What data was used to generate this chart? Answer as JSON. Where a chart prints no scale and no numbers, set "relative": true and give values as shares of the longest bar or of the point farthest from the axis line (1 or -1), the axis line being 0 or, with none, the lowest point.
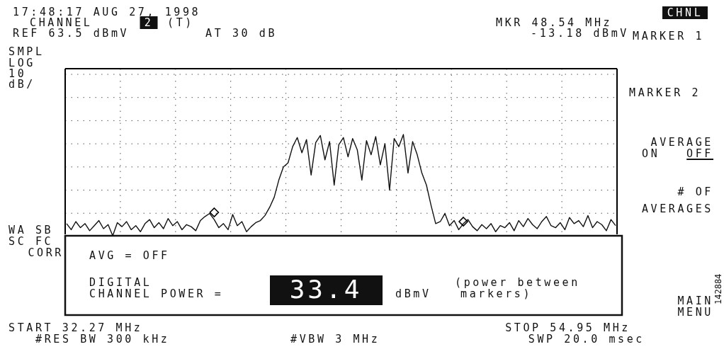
{
  "chart_data": {
    "type": "line",
    "relative": true,
    "grid": true,
    "categories": [
      null,
      null,
      null,
      null,
      null,
      null,
      null,
      null,
      null,
      null,
      null,
      null,
      null,
      null,
      null,
      null,
      null,
      null,
      null,
      null,
      null,
      null,
      null,
      null,
      null,
      null,
      null,
      null,
      null,
      null,
      null,
      null,
      null,
      null,
      null,
      null,
      null,
      null,
      null,
      null,
      null,
      null,
      null,
      null,
      null,
      null,
      null,
      null,
      null,
      null,
      null,
      null,
      null,
      null,
      null,
      null,
      null,
      null,
      null,
      null,
      null,
      null,
      null,
      null,
      null,
      null,
      null,
      null,
      null,
      null,
      null,
      null,
      null,
      null,
      null,
      null,
      null,
      null,
      null,
      null,
      null,
      null,
      null,
      null,
      null,
      null,
      null,
      null,
      null,
      null,
      null,
      null,
      null,
      null,
      null,
      null,
      null,
      null,
      null,
      null,
      null,
      null,
      null,
      null,
      null,
      null,
      null,
      null,
      null,
      null,
      null,
      null,
      null,
      null,
      null,
      null,
      null,
      null,
      null,
      null
    ],
    "series": [
      {
        "type": "line",
        "color": "#111111",
        "values": [
          0.12,
          0.06,
          0.14,
          0.08,
          0.12,
          0.05,
          0.1,
          0.15,
          0.07,
          0.11,
          0.0,
          0.13,
          0.09,
          0.14,
          0.06,
          0.1,
          0.04,
          0.12,
          0.16,
          0.08,
          0.13,
          0.07,
          0.17,
          0.1,
          0.14,
          0.06,
          0.11,
          0.09,
          0.05,
          0.15,
          0.19,
          0.22,
          0.16,
          0.08,
          0.12,
          0.06,
          0.21,
          0.1,
          0.14,
          0.04,
          0.09,
          0.13,
          0.15,
          0.2,
          0.28,
          0.38,
          0.55,
          0.68,
          0.72,
          0.88,
          0.97,
          0.82,
          0.95,
          0.6,
          0.92,
          0.99,
          0.75,
          0.93,
          0.5,
          0.9,
          0.97,
          0.78,
          0.96,
          0.85,
          0.55,
          0.94,
          0.8,
          0.98,
          0.7,
          0.91,
          0.45,
          0.96,
          0.88,
          1.0,
          0.62,
          0.93,
          0.8,
          0.62,
          0.5,
          0.3,
          0.12,
          0.14,
          0.22,
          0.1,
          0.15,
          0.06,
          0.12,
          0.16,
          0.09,
          0.05,
          0.11,
          0.07,
          0.12,
          0.04,
          0.1,
          0.08,
          0.13,
          0.05,
          0.15,
          0.09,
          0.17,
          0.11,
          0.07,
          0.14,
          0.19,
          0.1,
          0.08,
          0.13,
          0.06,
          0.18,
          0.12,
          0.15,
          0.09,
          0.2,
          0.08,
          0.14,
          0.11,
          0.05,
          0.16,
          0.1
        ]
      }
    ],
    "annotations": [
      "17:48:17 AUG 27, 1998",
      "CHANNEL",
      "2",
      "(T)",
      "REF 63.5 dBmV",
      "AT 30 dB",
      "MKR 48.54 MHz",
      "-13.18 dBmV",
      "CHNL",
      "MARKER 1",
      "SMPL",
      "LOG",
      "10",
      "dB/",
      "MARKER 2",
      "AVERAGE",
      "ON",
      "OFF",
      "# OF",
      "AVERAGES",
      "WA SB",
      "SC FC",
      "CORR",
      "AVG = OFF",
      "DIGITAL",
      "CHANNEL POWER =",
      "33.4",
      "dBmV",
      "(power between",
      "markers)",
      "MAIN",
      "MENU",
      "START 32.27 MHz",
      "#RES BW 300 kHz",
      "#VBW 3 MHz",
      "STOP 54.95 MHz",
      "SWP 20.0 msec",
      "142884"
    ]
  }
}
